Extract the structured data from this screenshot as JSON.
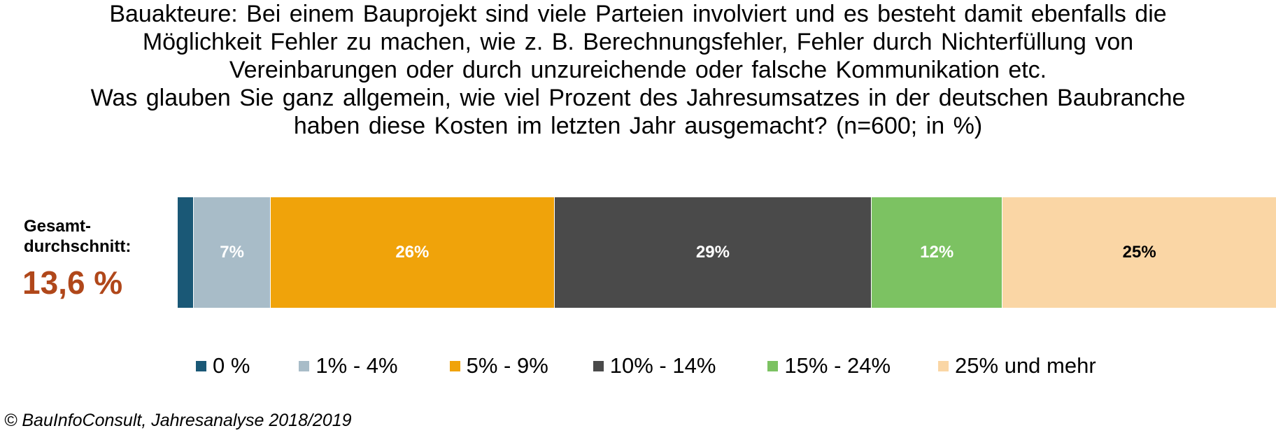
{
  "title_lines": [
    "Bauakteure: Bei einem Bauprojekt sind viele Parteien involviert und es besteht damit ebenfalls die",
    "Möglichkeit Fehler zu machen, wie z. B. Berechnungsfehler, Fehler durch Nichterfüllung von",
    "Vereinbarungen oder durch unzureichende oder falsche Kommunikation etc.",
    "Was glauben Sie ganz allgemein, wie viel Prozent des Jahresumsatzes in der deutschen Baubranche",
    "haben diese Kosten im letzten Jahr ausgemacht? (n=600; in %)"
  ],
  "summary": {
    "label_line1": "Gesamt-",
    "label_line2": "durchschnitt:",
    "value": "13,6 %",
    "value_color": "#b0471a"
  },
  "source": "© BauInfoConsult, Jahresanalyse 2018/2019",
  "chart_data": {
    "type": "bar",
    "orientation": "horizontal-stacked-100",
    "categories": [
      "Gesamtdurchschnitt"
    ],
    "series": [
      {
        "name": "0 %",
        "values": [
          1.5
        ],
        "label": "",
        "color": "#1a5876",
        "label_color": "#ffffff"
      },
      {
        "name": "1% - 4%",
        "values": [
          7
        ],
        "label": "7%",
        "color": "#a8bcc8",
        "label_color": "#ffffff"
      },
      {
        "name": "5% - 9%",
        "values": [
          26
        ],
        "label": "26%",
        "color": "#f0a30a",
        "label_color": "#ffffff"
      },
      {
        "name": "10% - 14%",
        "values": [
          29
        ],
        "label": "29%",
        "color": "#4a4a4a",
        "label_color": "#ffffff"
      },
      {
        "name": "15% - 24%",
        "values": [
          12
        ],
        "label": "12%",
        "color": "#7cc262",
        "label_color": "#ffffff"
      },
      {
        "name": "25% und mehr",
        "values": [
          25
        ],
        "label": "25%",
        "color": "#fad6a5",
        "label_color": "#000000"
      }
    ],
    "legend_position": "bottom",
    "grid": false
  }
}
